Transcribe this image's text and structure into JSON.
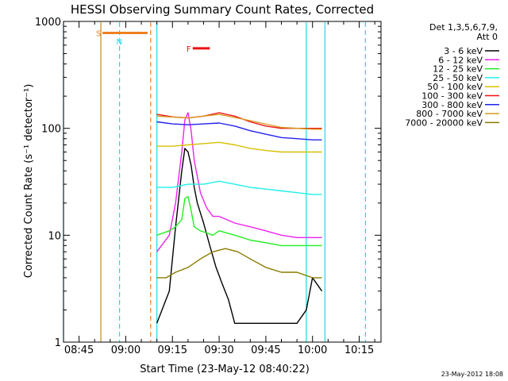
{
  "chart_data": {
    "type": "line",
    "title": "HESSI Observing Summary Count Rates, Corrected",
    "xlabel": "Start Time (23-May-12 08:40:22)",
    "ylabel": "Corrected Count Rate (s⁻¹ detector⁻¹)",
    "y_scale": "log",
    "xlim": [
      "08:40",
      "10:22"
    ],
    "ylim": [
      1,
      1000
    ],
    "x_ticks": [
      "08:45",
      "09:00",
      "09:15",
      "09:30",
      "09:45",
      "10:00",
      "10:15"
    ],
    "y_ticks": [
      "1",
      "10",
      "100",
      "1000"
    ],
    "legend_header": [
      "Det 1,3,5,6,7,9,",
      "Att 0"
    ],
    "legend_position": "right",
    "footer": "23-May-2012 18:08",
    "flags": [
      {
        "label": "S",
        "color": "#f08020",
        "x_start": "08:51",
        "x_end": "09:07",
        "y": 780
      },
      {
        "label": "N",
        "color": "#22d8e8",
        "x": "08:59",
        "y": 650
      },
      {
        "label": "F",
        "color": "#ee1111",
        "x_start": "09:20",
        "x_end": "09:27",
        "y": 560
      }
    ],
    "boundaries": [
      {
        "time": "08:40",
        "color": "#22d8e8",
        "style": "solid"
      },
      {
        "time": "08:52",
        "color": "#c88a10",
        "style": "solid"
      },
      {
        "time": "08:58",
        "color": "#22d8e8",
        "style": "dashed"
      },
      {
        "time": "09:08",
        "color": "#f08020",
        "style": "dashed"
      },
      {
        "time": "09:10",
        "color": "#22d8e8",
        "style": "solid"
      },
      {
        "time": "09:58",
        "color": "#22d8e8",
        "style": "solid"
      },
      {
        "time": "10:04",
        "color": "#22d8e8",
        "style": "solid"
      },
      {
        "time": "10:17",
        "color": "#22d8e8",
        "style": "dashed"
      }
    ],
    "series": [
      {
        "name": "3 - 6 keV",
        "color": "#000000",
        "x": [
          "09:10",
          "09:14",
          "09:16",
          "09:18",
          "09:19",
          "09:20",
          "09:21",
          "09:22",
          "09:23",
          "09:25",
          "09:27",
          "09:29",
          "09:31",
          "09:33",
          "09:35",
          "09:40",
          "09:45",
          "09:50",
          "09:55",
          "09:58",
          "10:00",
          "10:03"
        ],
        "y": [
          1.5,
          3,
          12,
          40,
          65,
          60,
          45,
          28,
          20,
          13,
          8,
          5,
          3.5,
          2.5,
          1.5,
          1.5,
          1.5,
          1.5,
          1.5,
          2,
          4,
          3
        ]
      },
      {
        "name": "6 - 12 keV",
        "color": "#ee22ee",
        "x": [
          "09:10",
          "09:14",
          "09:16",
          "09:18",
          "09:19",
          "09:20",
          "09:21",
          "09:22",
          "09:24",
          "09:26",
          "09:28",
          "09:30",
          "09:35",
          "09:40",
          "09:45",
          "09:50",
          "09:55",
          "10:00",
          "10:03"
        ],
        "y": [
          7,
          10,
          20,
          60,
          120,
          140,
          95,
          50,
          25,
          18,
          15,
          15,
          13,
          12,
          11,
          10,
          9.5,
          9.5,
          9.5
        ]
      },
      {
        "name": "12 - 25 keV",
        "color": "#22ee22",
        "x": [
          "09:10",
          "09:14",
          "09:16",
          "09:18",
          "09:19",
          "09:20",
          "09:21",
          "09:22",
          "09:24",
          "09:26",
          "09:28",
          "09:30",
          "09:35",
          "09:40",
          "09:45",
          "09:50",
          "09:55",
          "10:00",
          "10:03"
        ],
        "y": [
          10,
          11,
          12,
          14,
          22,
          23,
          17,
          12,
          11,
          10.5,
          10,
          11,
          10,
          9,
          8.5,
          8,
          8,
          8,
          8
        ]
      },
      {
        "name": "25 - 50 keV",
        "color": "#22eeee",
        "x": [
          "09:10",
          "09:15",
          "09:20",
          "09:25",
          "09:30",
          "09:35",
          "09:40",
          "09:45",
          "09:50",
          "09:55",
          "10:00",
          "10:03"
        ],
        "y": [
          28,
          28,
          30,
          30,
          32,
          30,
          28,
          27,
          26,
          25,
          24,
          24
        ]
      },
      {
        "name": "50 - 100 keV",
        "color": "#d8c000",
        "x": [
          "09:10",
          "09:15",
          "09:20",
          "09:25",
          "09:30",
          "09:35",
          "09:40",
          "09:45",
          "09:50",
          "09:55",
          "10:00",
          "10:03"
        ],
        "y": [
          68,
          68,
          70,
          72,
          74,
          70,
          65,
          62,
          60,
          60,
          60,
          60
        ]
      },
      {
        "name": "100 - 300 keV",
        "color": "#ee1111",
        "x": [
          "09:10",
          "09:15",
          "09:20",
          "09:25",
          "09:30",
          "09:35",
          "09:40",
          "09:45",
          "09:50",
          "09:55",
          "10:00",
          "10:03"
        ],
        "y": [
          135,
          128,
          125,
          130,
          140,
          130,
          115,
          105,
          100,
          100,
          100,
          100
        ]
      },
      {
        "name": "300 - 800 keV",
        "color": "#2222ee",
        "x": [
          "09:10",
          "09:15",
          "09:20",
          "09:25",
          "09:30",
          "09:35",
          "09:40",
          "09:45",
          "09:50",
          "09:55",
          "10:00",
          "10:03"
        ],
        "y": [
          115,
          110,
          108,
          110,
          112,
          105,
          95,
          88,
          82,
          80,
          78,
          78
        ]
      },
      {
        "name": "800 - 7000 keV",
        "color": "#d89820",
        "x": [
          "09:10",
          "09:20",
          "09:30",
          "09:40",
          "09:50",
          "10:00",
          "10:03"
        ],
        "y": [
          130,
          125,
          135,
          118,
          102,
          98,
          98
        ]
      },
      {
        "name": "7000 - 20000 keV",
        "color": "#8a7a00",
        "x": [
          "09:10",
          "09:13",
          "09:16",
          "09:20",
          "09:24",
          "09:28",
          "09:32",
          "09:36",
          "09:40",
          "09:45",
          "09:50",
          "09:55",
          "10:00",
          "10:03"
        ],
        "y": [
          4,
          4,
          4.5,
          5,
          6,
          7,
          7.5,
          7,
          6,
          5,
          4.5,
          4.5,
          4,
          4
        ]
      }
    ]
  }
}
